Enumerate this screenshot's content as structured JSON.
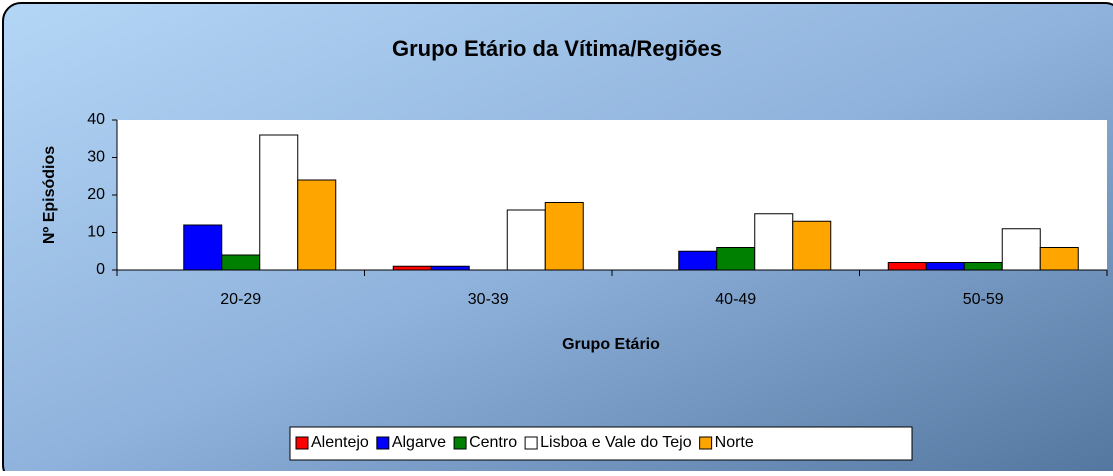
{
  "chart_data": {
    "type": "bar",
    "title": "Grupo Etário da Vítima/Regiões",
    "x_label": "Grupo Etário",
    "y_label": "Nº Episódios",
    "categories": [
      "20-29",
      "30-39",
      "40-49",
      "50-59"
    ],
    "series": [
      {
        "name": "Alentejo",
        "color": "#ff0000",
        "values": [
          0,
          1,
          0,
          2
        ]
      },
      {
        "name": "Algarve",
        "color": "#0000ff",
        "values": [
          12,
          1,
          5,
          2
        ]
      },
      {
        "name": "Centro",
        "color": "#008000",
        "values": [
          4,
          0,
          6,
          2
        ]
      },
      {
        "name": "Lisboa e Vale do Tejo",
        "color": "#ffffff",
        "values": [
          36,
          16,
          15,
          11
        ]
      },
      {
        "name": "Norte",
        "color": "#ffa500",
        "values": [
          24,
          18,
          13,
          6
        ]
      }
    ],
    "ylim": [
      0,
      40
    ],
    "yticks": [
      0,
      10,
      20,
      30,
      40
    ],
    "grid": false,
    "legend": "bottom"
  }
}
